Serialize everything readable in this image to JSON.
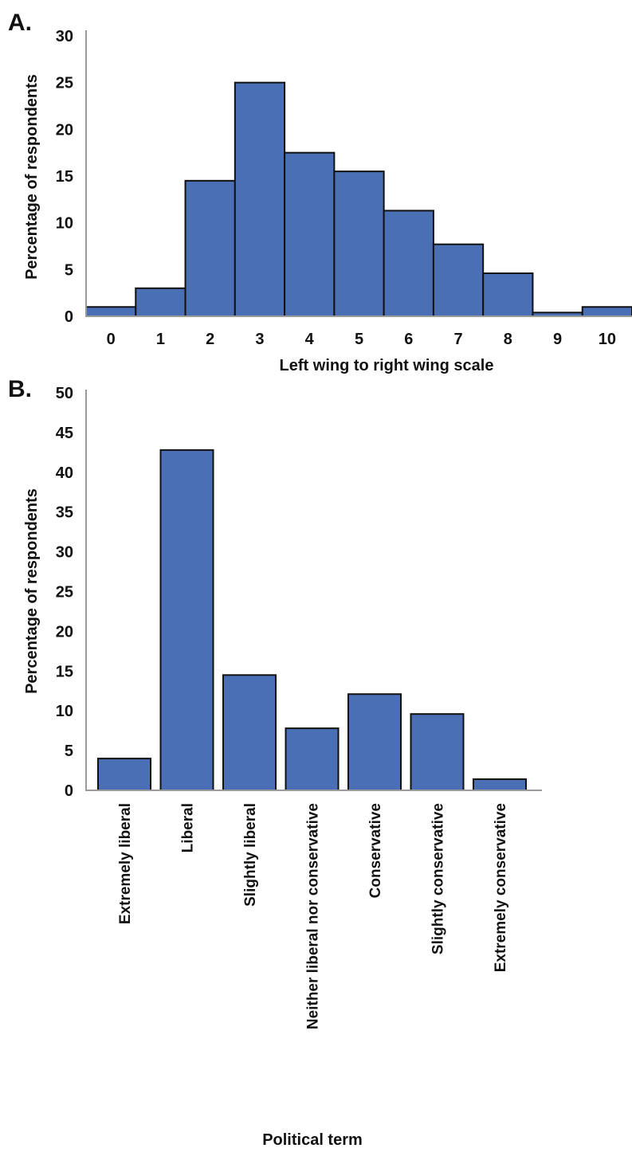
{
  "chart_data": [
    {
      "panel": "A.",
      "type": "bar",
      "categories": [
        "0",
        "1",
        "2",
        "3",
        "4",
        "5",
        "6",
        "7",
        "8",
        "9",
        "10"
      ],
      "values": [
        1,
        3,
        14.5,
        25,
        17.5,
        15.5,
        11.3,
        7.7,
        4.6,
        0.4,
        1
      ],
      "xlabel": "Left wing to right wing scale",
      "ylabel": "Percentage of respondents",
      "ylim": [
        0,
        30
      ],
      "yticks": [
        "0",
        "5",
        "10",
        "15",
        "20",
        "25",
        "30"
      ],
      "grid": false,
      "colors": {
        "bar": "#4a6fb4"
      }
    },
    {
      "panel": "B.",
      "type": "bar",
      "categories": [
        "Extremely liberal",
        "Liberal",
        "Slightly liberal",
        "Neither liberal nor conservative",
        "Conservative",
        "Slightly conservative",
        "Extremely conservative"
      ],
      "values": [
        4,
        42.8,
        14.5,
        7.8,
        12.1,
        9.6,
        1.4
      ],
      "xlabel": "Political term",
      "ylabel": "Percentage of respondents",
      "ylim": [
        0,
        50
      ],
      "yticks": [
        "0",
        "5",
        "10",
        "15",
        "20",
        "25",
        "30",
        "35",
        "40",
        "45",
        "50"
      ],
      "grid": false,
      "colors": {
        "bar": "#4a6fb4"
      }
    }
  ]
}
